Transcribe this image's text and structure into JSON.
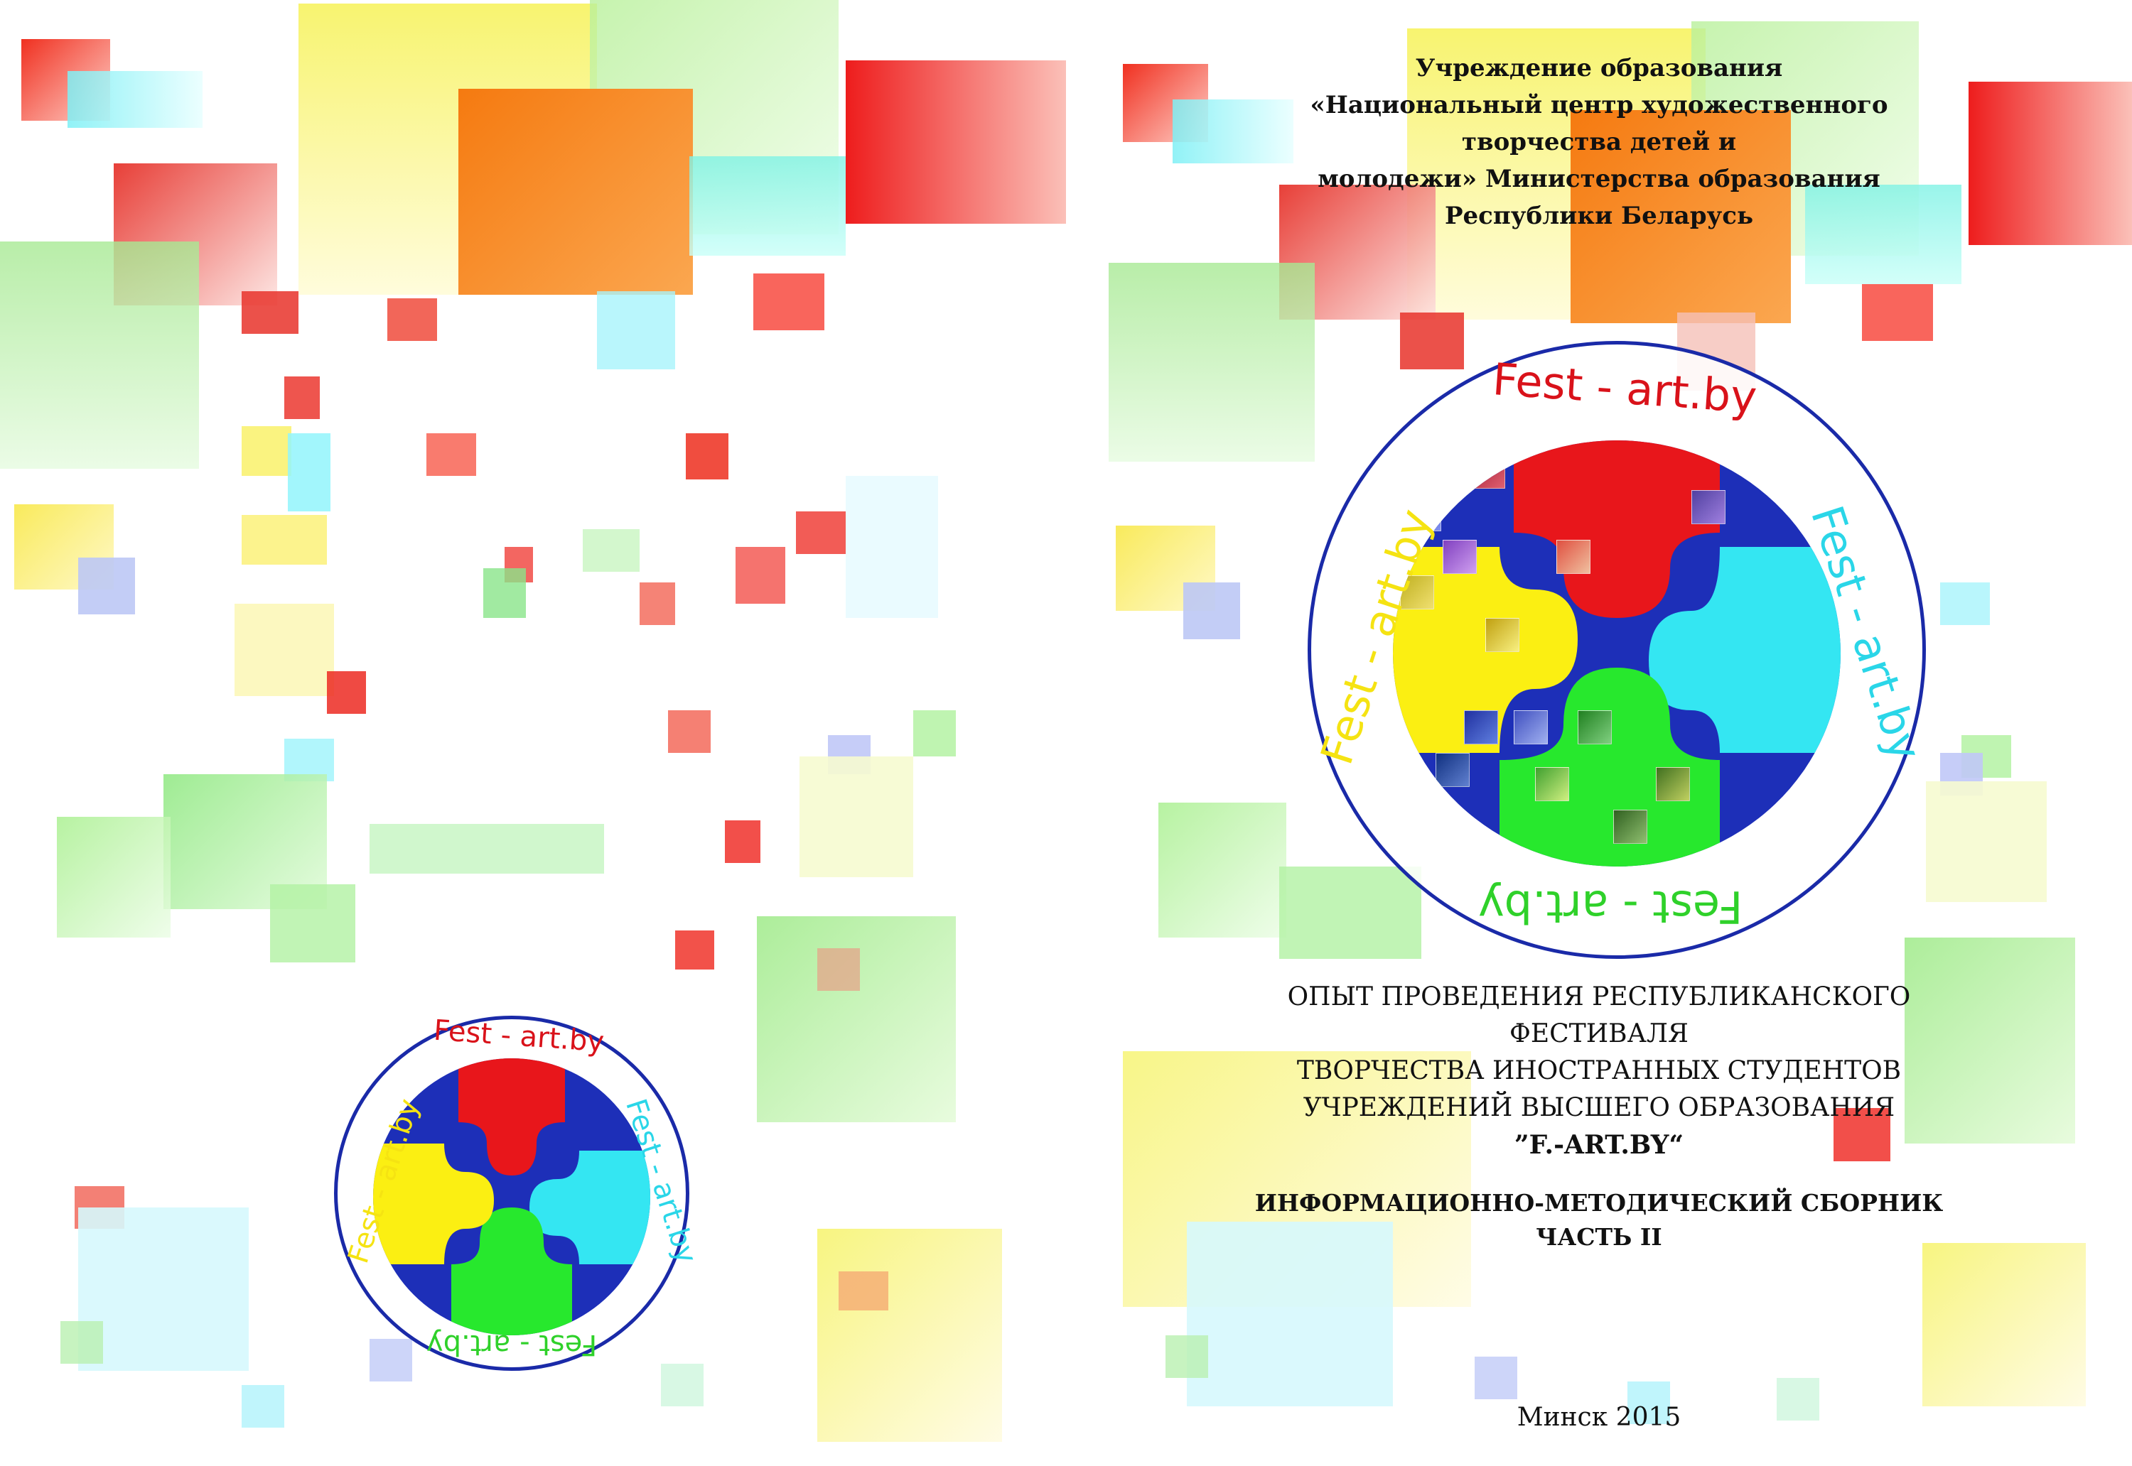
{
  "front": {
    "institution_line1": "Учреждение образования",
    "institution_line2": "«Национальный центр художественного творчества детей и",
    "institution_line3": "молодежи» Министерства образования Республики Беларусь",
    "title_line1": "ОПЫТ ПРОВЕДЕНИЯ РЕСПУБЛИКАНСКОГО ФЕСТИВАЛЯ",
    "title_line2": "ТВОРЧЕСТВА ИНОСТРАННЫХ СТУДЕНТОВ",
    "title_line3": "УЧРЕЖДЕНИЙ ВЫСШЕГО ОБРАЗОВАНИЯ",
    "title_line4": "”F.-ART.BY“",
    "subtitle_line1": "ИНФОРМАЦИОННО-МЕТОДИЧЕСКИЙ СБОРНИК",
    "subtitle_line2": "ЧАСТЬ II",
    "place_year": "Минск 2015"
  },
  "logo": {
    "text_top": "Fest - art.by",
    "text_right": "Fest - art.by",
    "text_bottom": "Fest - art.by",
    "text_left": "Fest - art.by",
    "colors": {
      "ring": "#1a2aa8",
      "background": "#1d2fb8",
      "red": "#e8161b",
      "cyan": "#34e6f2",
      "green": "#27e82d",
      "yellow": "#fbef12",
      "text_top": "#d9121a",
      "text_right": "#2ad6e8",
      "text_bottom": "#2fd12a",
      "text_left": "#f5e312"
    }
  }
}
